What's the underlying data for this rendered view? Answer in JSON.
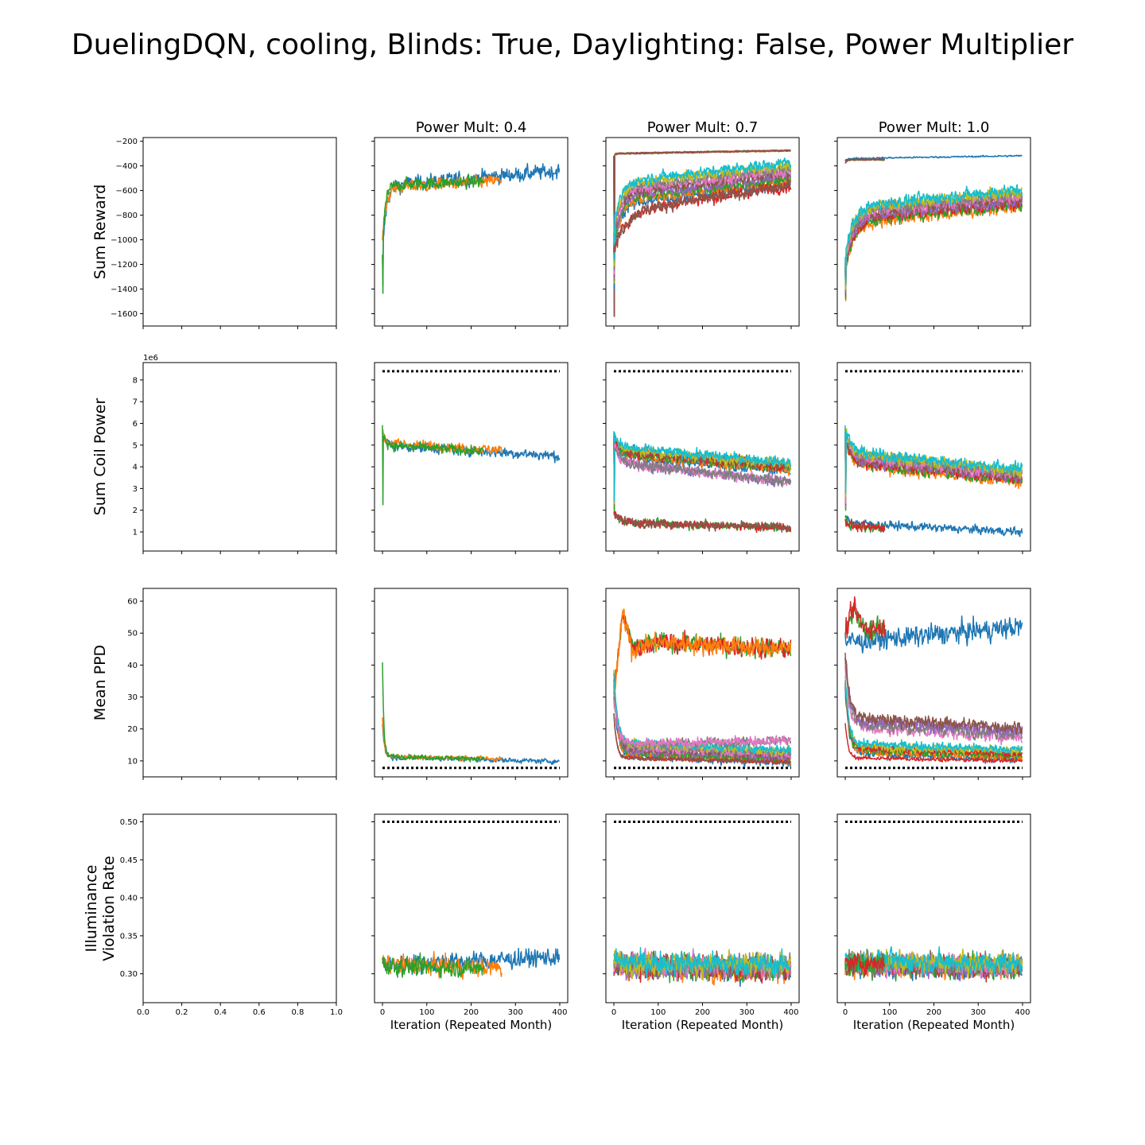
{
  "figure": {
    "title": "DuelingDQN, cooling, Blinds: True, Daylighting: False, Power Multiplier",
    "column_titles": [
      "",
      "Power Mult: 0.4",
      "Power Mult: 0.7",
      "Power Mult: 1.0"
    ],
    "row_labels": [
      [
        "Sum Reward"
      ],
      [
        "Sum Coil Power"
      ],
      [
        "Mean PPD"
      ],
      [
        "Illuminance",
        "Violation Rate"
      ]
    ],
    "xlabel": "Iteration (Repeated Month)",
    "empty_x_ticks": [
      "0.0",
      "0.2",
      "0.4",
      "0.6",
      "0.8",
      "1.0"
    ],
    "x_ticks": [
      "0",
      "100",
      "200",
      "300",
      "400"
    ],
    "y_ticks": [
      [
        "−200",
        "−400",
        "−600",
        "−800",
        "−1000",
        "−1200",
        "−1400",
        "−1600"
      ],
      [
        "8",
        "7",
        "6",
        "5",
        "4",
        "3",
        "2",
        "1"
      ],
      [
        "60",
        "50",
        "40",
        "30",
        "20",
        "10"
      ],
      [
        "0.50",
        "0.45",
        "0.40",
        "0.35",
        "0.30"
      ]
    ],
    "offset_text": [
      "",
      "1e6",
      "",
      ""
    ]
  },
  "colors": [
    "#1f77b4",
    "#ff7f0e",
    "#2ca02c",
    "#d62728",
    "#9467bd",
    "#8c564b",
    "#e377c2",
    "#7f7f7f",
    "#bcbd22",
    "#17becf"
  ],
  "chart_data": {
    "type": "line",
    "layout": "4x4 grid of subplots; rows share y axes, columns share x axes; first column empty",
    "x_range": [
      -18,
      418
    ],
    "rows": [
      {
        "ylabel": "Sum Reward",
        "ylim": [
          -1700,
          -170
        ],
        "reference": null
      },
      {
        "ylabel": "Sum Coil Power",
        "ylim": [
          120000.0,
          8800000.0
        ],
        "y_scale_label": "1e6",
        "reference": 8400000.0
      },
      {
        "ylabel": "Mean PPD",
        "ylim": [
          5,
          64
        ],
        "reference": 7.8
      },
      {
        "ylabel": "Illuminance Violation Rate",
        "ylim": [
          0.262,
          0.51
        ],
        "reference": 0.5
      }
    ],
    "panels": [
      {
        "row": 0,
        "col": 1,
        "groups": [
          {
            "colors": [
              0
            ],
            "length": 400,
            "start": -1150,
            "dip": -1400,
            "plateau": -560,
            "end": -440,
            "tau": 8,
            "noise": 55
          },
          {
            "colors": [
              1
            ],
            "length": 270,
            "start": -1000,
            "plateau": -580,
            "end": -490,
            "tau": 8,
            "noise": 45
          },
          {
            "colors": [
              2
            ],
            "length": 230,
            "start": -1100,
            "dip": -1420,
            "plateau": -560,
            "end": -500,
            "tau": 6,
            "noise": 45
          }
        ]
      },
      {
        "row": 0,
        "col": 2,
        "groups": [
          {
            "colors": [
              0,
              1,
              2,
              3,
              5
            ],
            "length": 400,
            "start": -320,
            "dip": -1620,
            "plateau": -300,
            "end": -275,
            "tau": 3,
            "noise": 6
          },
          {
            "colors": [
              0,
              1,
              2,
              4,
              5,
              6,
              7,
              8,
              9
            ],
            "length": 400,
            "start": -1000,
            "dip": -1300,
            "plateau": -620,
            "end": -460,
            "tau": 15,
            "noise": 40,
            "spread": 90
          },
          {
            "colors": [
              3,
              5
            ],
            "length": 400,
            "start": -1100,
            "plateau": -780,
            "end": -560,
            "tau": 25,
            "noise": 45
          }
        ]
      },
      {
        "row": 0,
        "col": 3,
        "groups": [
          {
            "colors": [
              0
            ],
            "length": 400,
            "start": -360,
            "plateau": -340,
            "end": -318,
            "tau": 3,
            "noise": 6
          },
          {
            "colors": [
              2,
              3,
              5
            ],
            "length": 90,
            "start": -380,
            "plateau": -350,
            "end": -345,
            "tau": 3,
            "noise": 6
          },
          {
            "colors": [
              1,
              2,
              3,
              4,
              5,
              6,
              7,
              8,
              9
            ],
            "length": 400,
            "start": -1200,
            "dip": -1440,
            "plateau": -800,
            "end": -660,
            "tau": 18,
            "noise": 45,
            "spread": 70
          }
        ]
      },
      {
        "row": 1,
        "col": 1,
        "groups": [
          {
            "colors": [
              0
            ],
            "length": 400,
            "start": 5400000.0,
            "plateau": 5000000.0,
            "end": 4500000.0,
            "tau": 8,
            "noise": 220000.0
          },
          {
            "colors": [
              1
            ],
            "length": 270,
            "start": 5500000.0,
            "plateau": 5100000.0,
            "end": 4600000.0,
            "tau": 8,
            "noise": 200000.0
          },
          {
            "colors": [
              2
            ],
            "length": 230,
            "start": 5800000.0,
            "dip": 2200000.0,
            "plateau": 5000000.0,
            "end": 4500000.0,
            "tau": 6,
            "noise": 200000.0
          }
        ]
      },
      {
        "row": 1,
        "col": 2,
        "groups": [
          {
            "colors": [
              0,
              1,
              2,
              3,
              5,
              8,
              9
            ],
            "length": 400,
            "start": 5400000.0,
            "dip": 2200000.0,
            "plateau": 4700000.0,
            "end": 4000000.0,
            "tau": 12,
            "noise": 220000.0,
            "spread": 200000.0
          },
          {
            "colors": [
              4,
              6,
              7
            ],
            "length": 400,
            "start": 5000000.0,
            "plateau": 4200000.0,
            "end": 3300000.0,
            "tau": 12,
            "noise": 220000.0
          },
          {
            "colors": [
              2,
              3,
              5
            ],
            "length": 400,
            "start": 1900000.0,
            "plateau": 1450000.0,
            "end": 1200000.0,
            "tau": 12,
            "noise": 180000.0
          }
        ]
      },
      {
        "row": 1,
        "col": 3,
        "groups": [
          {
            "colors": [
              1,
              2,
              3,
              4,
              5,
              6,
              7,
              8,
              9
            ],
            "length": 400,
            "start": 5600000.0,
            "dip": 2400000.0,
            "plateau": 4400000.0,
            "end": 3600000.0,
            "tau": 12,
            "noise": 250000.0,
            "spread": 300000.0
          },
          {
            "colors": [
              0
            ],
            "length": 400,
            "start": 1700000.0,
            "plateau": 1400000.0,
            "end": 1000000.0,
            "tau": 15,
            "noise": 180000.0
          },
          {
            "colors": [
              2,
              3
            ],
            "length": 90,
            "start": 1600000.0,
            "plateau": 1200000.0,
            "end": 1200000.0,
            "tau": 10,
            "noise": 200000.0
          }
        ]
      },
      {
        "row": 2,
        "col": 1,
        "groups": [
          {
            "colors": [
              0
            ],
            "length": 400,
            "start": 22,
            "plateau": 11.2,
            "end": 9.8,
            "tau": 4,
            "noise": 0.7
          },
          {
            "colors": [
              1
            ],
            "length": 270,
            "start": 24,
            "plateau": 11.5,
            "end": 10.2,
            "tau": 4,
            "noise": 0.7
          },
          {
            "colors": [
              2
            ],
            "length": 230,
            "start": 41,
            "plateau": 11.5,
            "end": 10.0,
            "tau": 3,
            "noise": 0.7
          }
        ]
      },
      {
        "row": 2,
        "col": 2,
        "groups": [
          {
            "colors": [
              2,
              3,
              1
            ],
            "length": 400,
            "start": 30,
            "peak": 56,
            "plateau": 48,
            "end": 45,
            "tau": 25,
            "noise": 2.8
          },
          {
            "colors": [
              0,
              1,
              2,
              4,
              5,
              6,
              7,
              8,
              9
            ],
            "length": 400,
            "start": 36,
            "plateau": 14,
            "end": 11.5,
            "tau": 8,
            "noise": 1.3,
            "spread": 2
          },
          {
            "colors": [
              7,
              6
            ],
            "length": 400,
            "start": 30,
            "plateau": 15,
            "end": 16.5,
            "tau": 10,
            "noise": 1.4
          },
          {
            "colors": [
              3,
              5
            ],
            "length": 400,
            "start": 25,
            "plateau": 11,
            "end": 9.6,
            "tau": 6,
            "noise": 0.6
          }
        ]
      },
      {
        "row": 2,
        "col": 3,
        "groups": [
          {
            "colors": [
              0
            ],
            "length": 400,
            "start": 48,
            "plateau": 47,
            "end": 52,
            "tau": 10,
            "noise": 3
          },
          {
            "colors": [
              2,
              3
            ],
            "length": 90,
            "start": 50,
            "peak": 58,
            "plateau": 52,
            "end": 50,
            "tau": 8,
            "noise": 3
          },
          {
            "colors": [
              6,
              7,
              4,
              5
            ],
            "length": 400,
            "start": 42,
            "plateau": 22,
            "end": 19,
            "tau": 10,
            "noise": 1.8,
            "spread": 1.5
          },
          {
            "colors": [
              0,
              1,
              2,
              3,
              8,
              9
            ],
            "length": 400,
            "start": 35,
            "plateau": 14,
            "end": 12,
            "tau": 8,
            "noise": 1.3,
            "spread": 1.5
          },
          {
            "colors": [
              3
            ],
            "length": 400,
            "start": 22,
            "plateau": 11,
            "end": 10,
            "tau": 6,
            "noise": 0.6
          }
        ]
      },
      {
        "row": 3,
        "col": 1,
        "groups": [
          {
            "colors": [
              0
            ],
            "length": 400,
            "start": 0.315,
            "plateau": 0.312,
            "end": 0.322,
            "tau": 5,
            "noise": 0.011
          },
          {
            "colors": [
              1
            ],
            "length": 270,
            "start": 0.315,
            "plateau": 0.313,
            "end": 0.305,
            "tau": 5,
            "noise": 0.011
          },
          {
            "colors": [
              2
            ],
            "length": 230,
            "start": 0.315,
            "plateau": 0.31,
            "end": 0.305,
            "tau": 5,
            "noise": 0.011
          }
        ]
      },
      {
        "row": 3,
        "col": 2,
        "groups": [
          {
            "colors": [
              0,
              1,
              2,
              3,
              4,
              5,
              6,
              7,
              8,
              9
            ],
            "length": 400,
            "start": 0.315,
            "plateau": 0.312,
            "end": 0.308,
            "tau": 5,
            "noise": 0.014,
            "spread": 0.004
          }
        ]
      },
      {
        "row": 3,
        "col": 3,
        "groups": [
          {
            "colors": [
              0,
              1,
              2,
              3,
              4,
              5,
              6,
              7,
              8,
              9
            ],
            "length": 400,
            "start": 0.316,
            "plateau": 0.313,
            "end": 0.31,
            "tau": 5,
            "noise": 0.013,
            "spread": 0.004
          },
          {
            "colors": [
              2,
              3
            ],
            "length": 90,
            "start": 0.316,
            "plateau": 0.314,
            "end": 0.314,
            "tau": 5,
            "noise": 0.012
          }
        ]
      }
    ]
  }
}
